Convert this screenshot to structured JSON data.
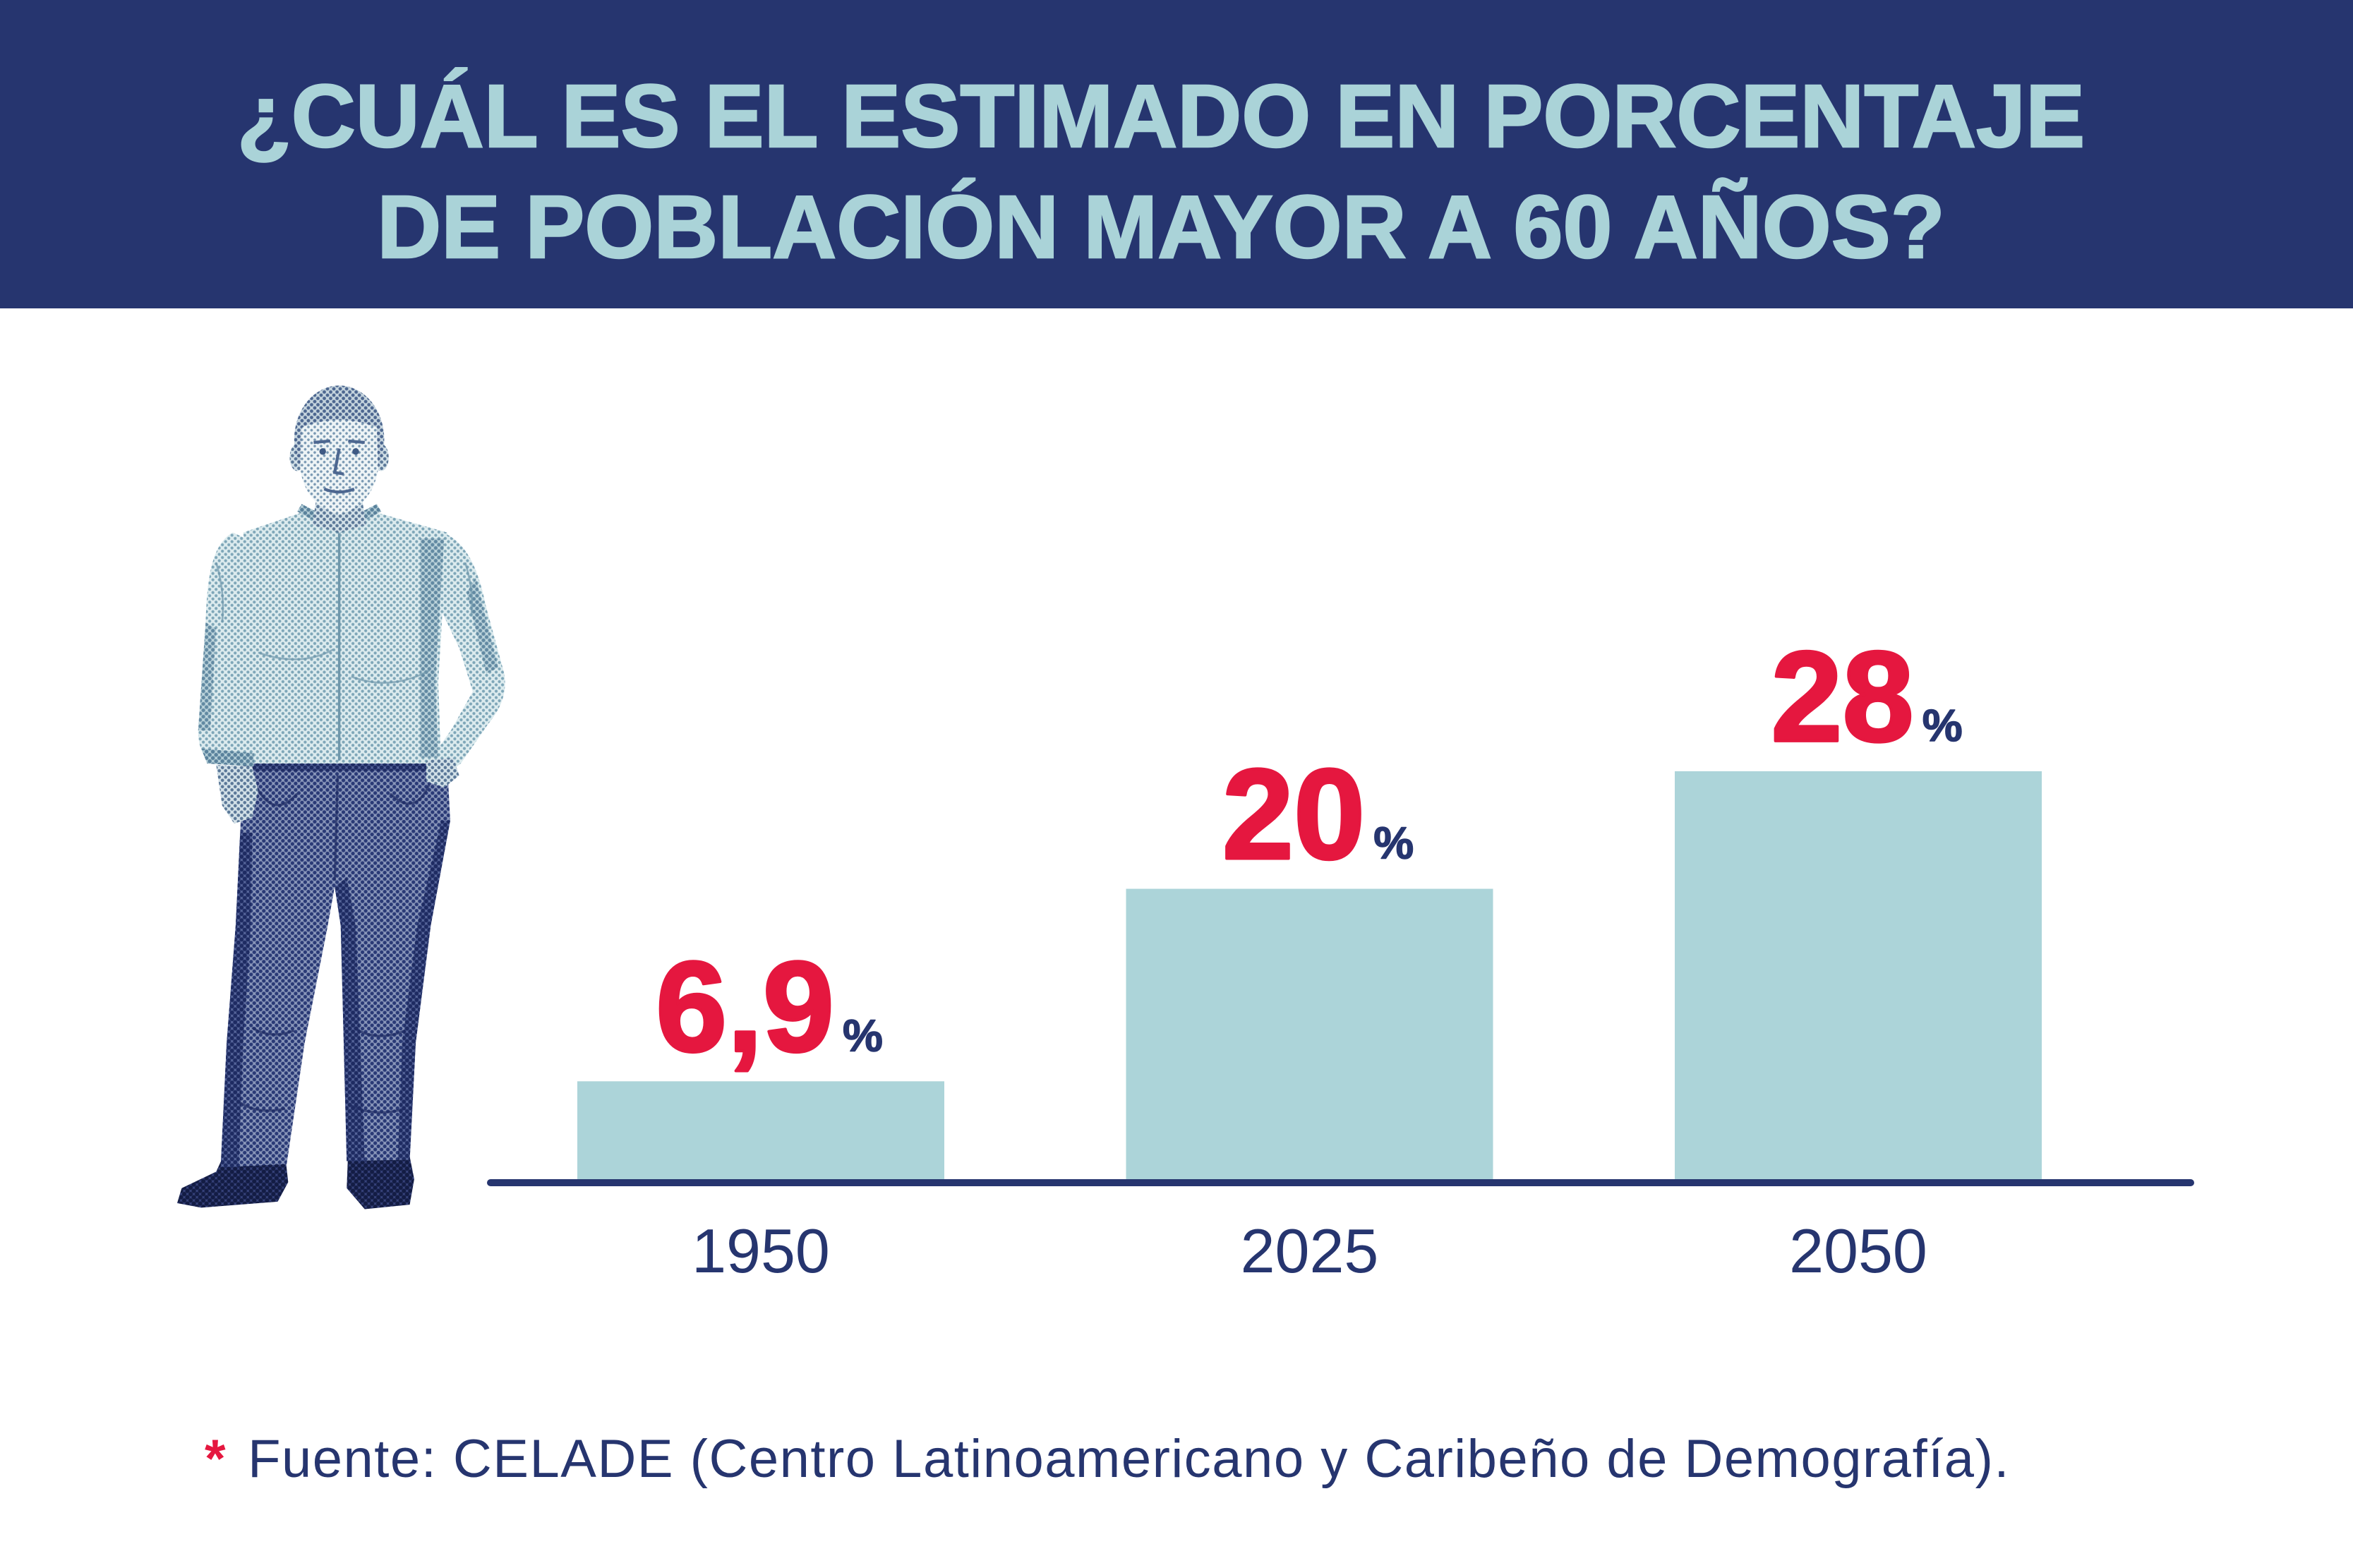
{
  "colors": {
    "navy": "#26356f",
    "title_text": "#aad3d8",
    "bar": "#acd4d9",
    "value_text": "#e5173f",
    "asterisk": "#e5173f"
  },
  "chart_data": {
    "type": "bar",
    "title_lines": [
      "¿CUÁL ES EL ESTIMADO EN PORCENTAJE",
      "DE POBLACIÓN MAYOR A 60 AÑOS?"
    ],
    "categories": [
      "1950",
      "2025",
      "2050"
    ],
    "values": [
      6.9,
      20,
      28
    ],
    "value_labels": [
      "6,9",
      "20",
      "28"
    ],
    "unit": "%",
    "grid": false
  },
  "footnote": {
    "marker": "*",
    "text": "Fuente: CELADE (Centro Latinoamericano y Caribeño de Demografía)."
  }
}
